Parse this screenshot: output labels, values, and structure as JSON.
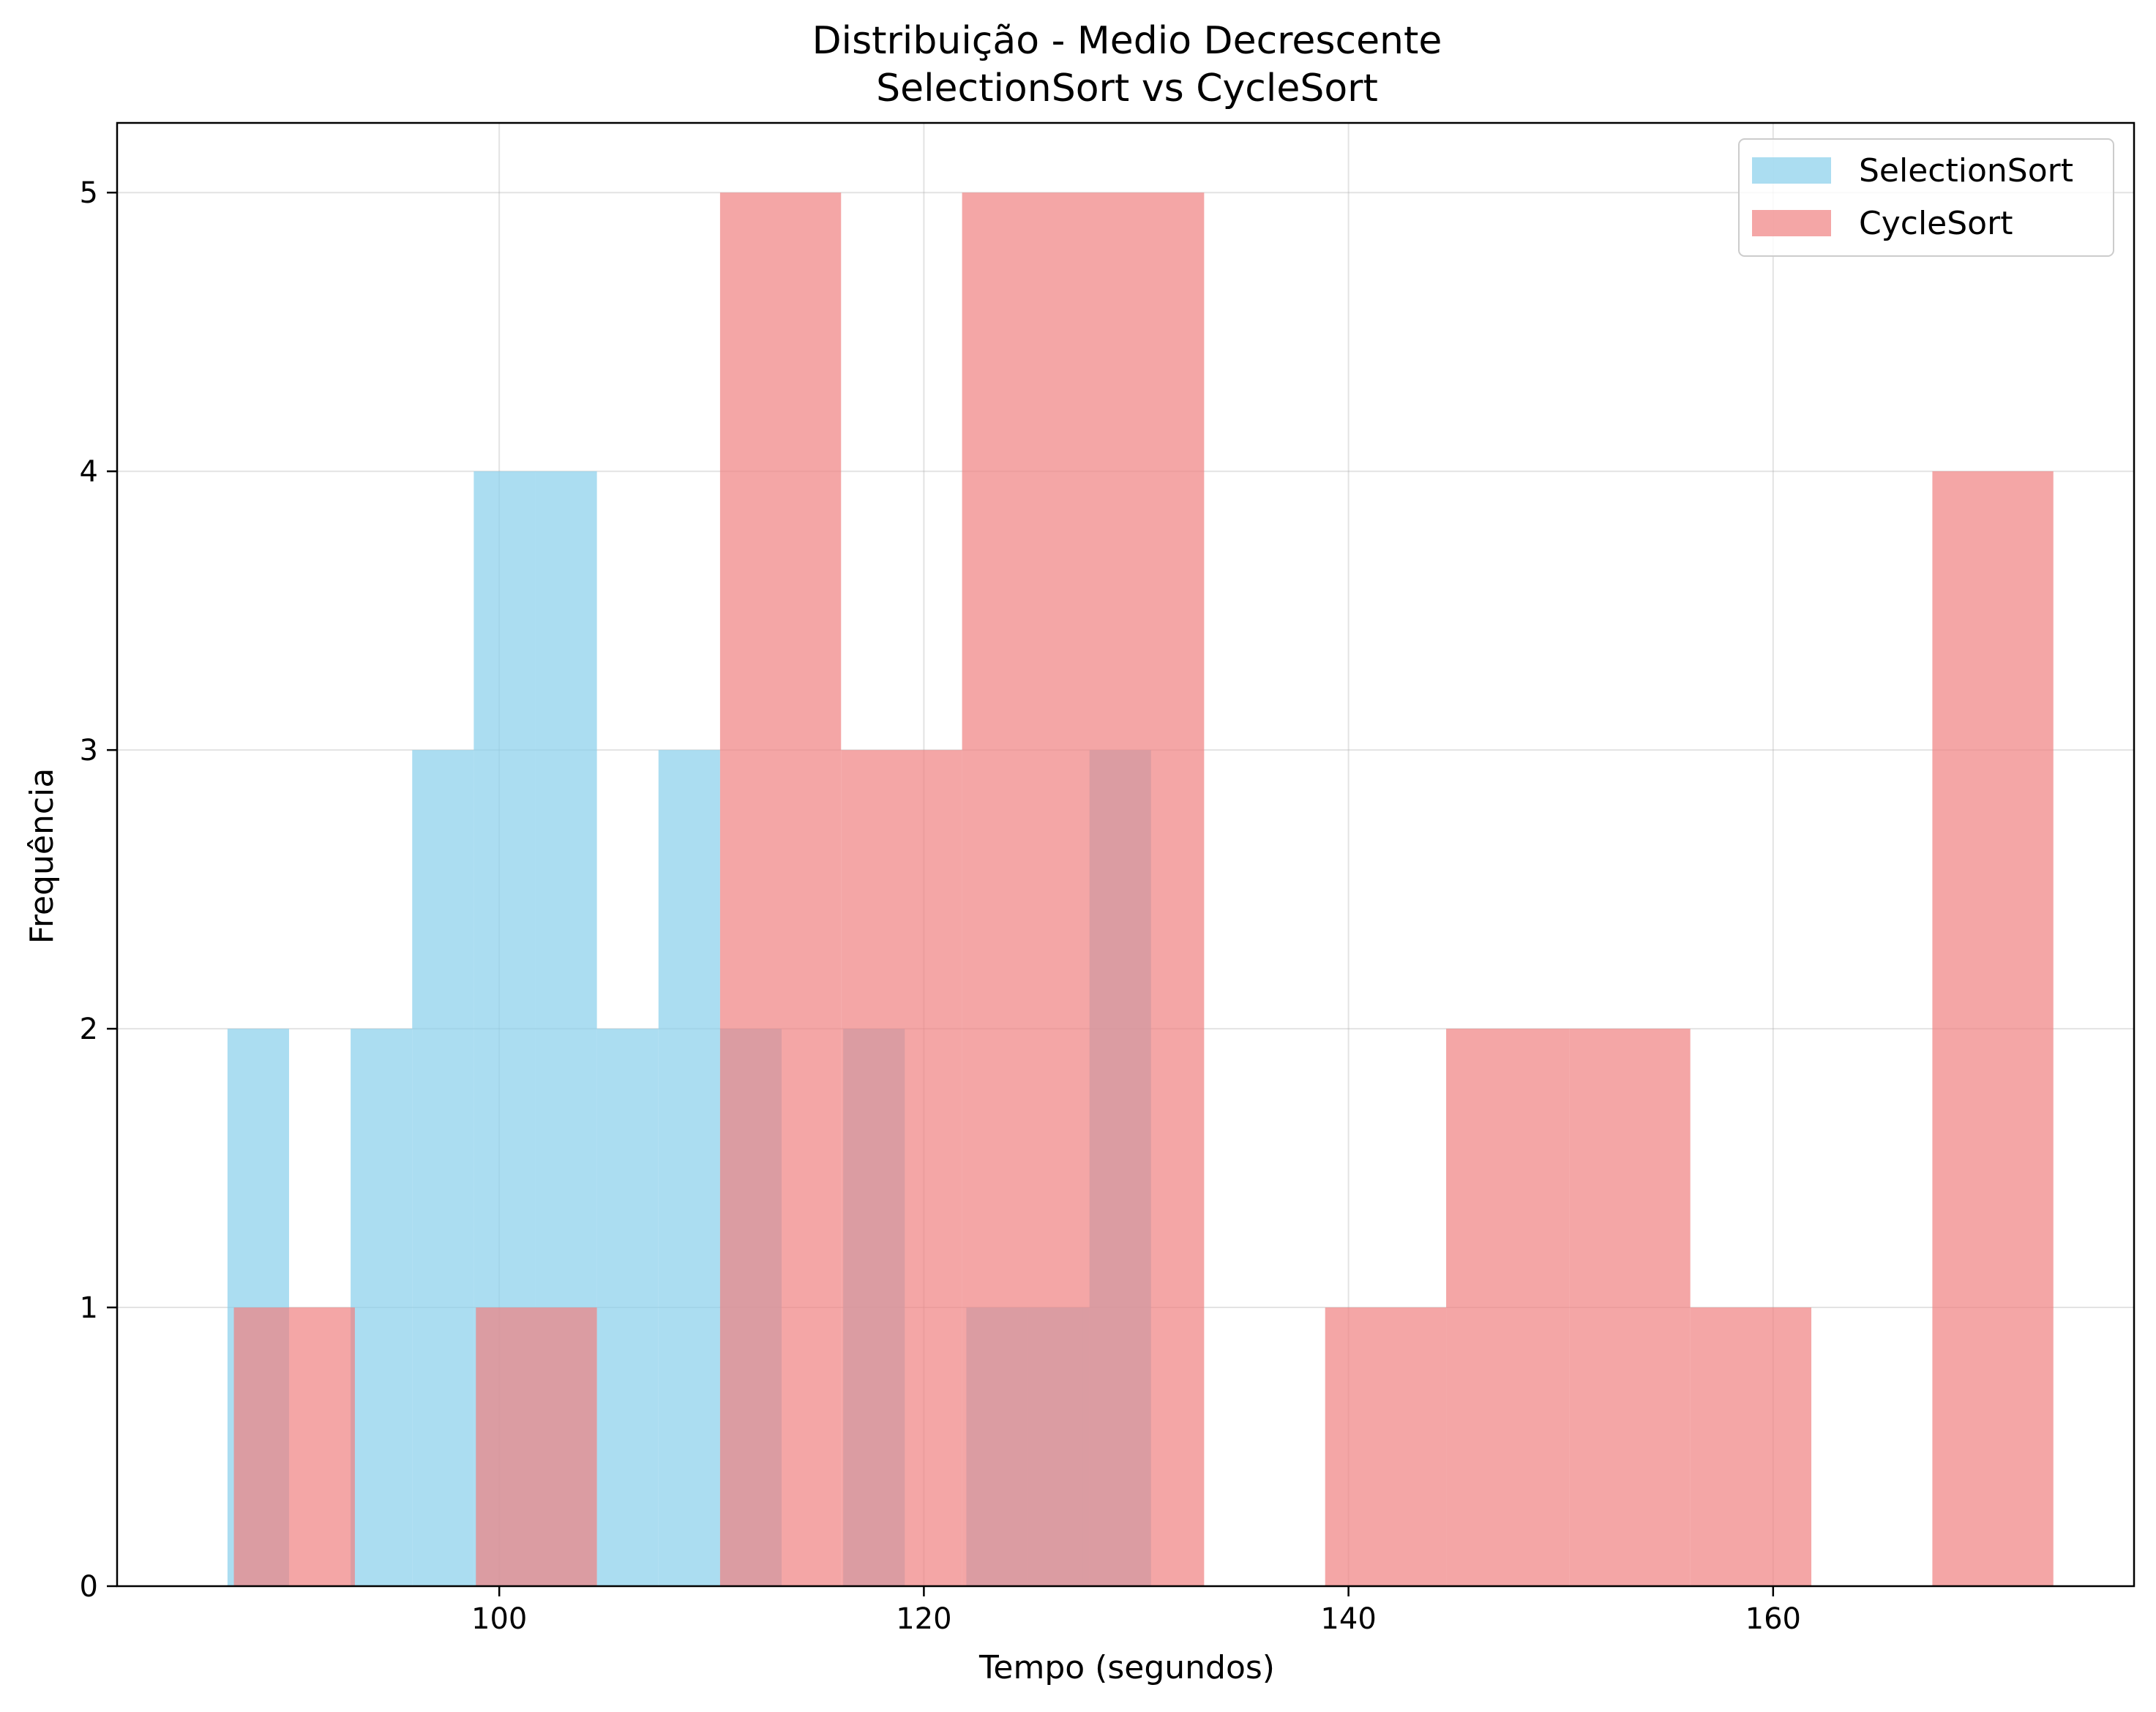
{
  "chart_data": {
    "type": "histogram",
    "title": "Distribuição - Medio Decrescente",
    "subtitle": "SelectionSort vs CycleSort",
    "xlabel": "Tempo (segundos)",
    "ylabel": "Frequência",
    "xlim": [
      82,
      177
    ],
    "ylim": [
      0,
      5.25
    ],
    "x_ticks": [
      100,
      120,
      140,
      160
    ],
    "y_ticks": [
      0,
      1,
      2,
      3,
      4,
      5
    ],
    "grid": true,
    "legend_position": "top-right",
    "series": [
      {
        "name": "SelectionSort",
        "color": "#87CEEB",
        "opacity": 0.7,
        "bins": [
          {
            "x0": 87.2,
            "x1": 90.1,
            "count": 2
          },
          {
            "x0": 90.1,
            "x1": 93.0,
            "count": 0
          },
          {
            "x0": 93.0,
            "x1": 95.9,
            "count": 2
          },
          {
            "x0": 95.9,
            "x1": 98.8,
            "count": 3
          },
          {
            "x0": 98.8,
            "x1": 101.7,
            "count": 4
          },
          {
            "x0": 101.7,
            "x1": 104.6,
            "count": 4
          },
          {
            "x0": 104.6,
            "x1": 107.5,
            "count": 2
          },
          {
            "x0": 107.5,
            "x1": 110.4,
            "count": 3
          },
          {
            "x0": 110.4,
            "x1": 113.3,
            "count": 2
          },
          {
            "x0": 113.3,
            "x1": 116.2,
            "count": 0
          },
          {
            "x0": 116.2,
            "x1": 119.1,
            "count": 2
          },
          {
            "x0": 119.1,
            "x1": 122.0,
            "count": 0
          },
          {
            "x0": 122.0,
            "x1": 124.9,
            "count": 1
          },
          {
            "x0": 124.9,
            "x1": 127.8,
            "count": 1
          },
          {
            "x0": 127.8,
            "x1": 130.7,
            "count": 3
          }
        ]
      },
      {
        "name": "CycleSort",
        "color": "#F08080",
        "opacity": 0.7,
        "bins": [
          {
            "x0": 87.5,
            "x1": 93.2,
            "count": 1
          },
          {
            "x0": 93.2,
            "x1": 98.9,
            "count": 0
          },
          {
            "x0": 98.9,
            "x1": 104.6,
            "count": 1
          },
          {
            "x0": 104.6,
            "x1": 110.4,
            "count": 0
          },
          {
            "x0": 110.4,
            "x1": 116.1,
            "count": 5
          },
          {
            "x0": 116.1,
            "x1": 121.8,
            "count": 3
          },
          {
            "x0": 121.8,
            "x1": 127.5,
            "count": 5
          },
          {
            "x0": 127.5,
            "x1": 133.2,
            "count": 5
          },
          {
            "x0": 133.2,
            "x1": 138.9,
            "count": 0
          },
          {
            "x0": 138.9,
            "x1": 144.6,
            "count": 1
          },
          {
            "x0": 144.6,
            "x1": 150.4,
            "count": 2
          },
          {
            "x0": 150.4,
            "x1": 156.1,
            "count": 2
          },
          {
            "x0": 156.1,
            "x1": 161.8,
            "count": 1
          },
          {
            "x0": 161.8,
            "x1": 167.5,
            "count": 0
          },
          {
            "x0": 167.5,
            "x1": 173.2,
            "count": 4
          }
        ]
      }
    ]
  }
}
